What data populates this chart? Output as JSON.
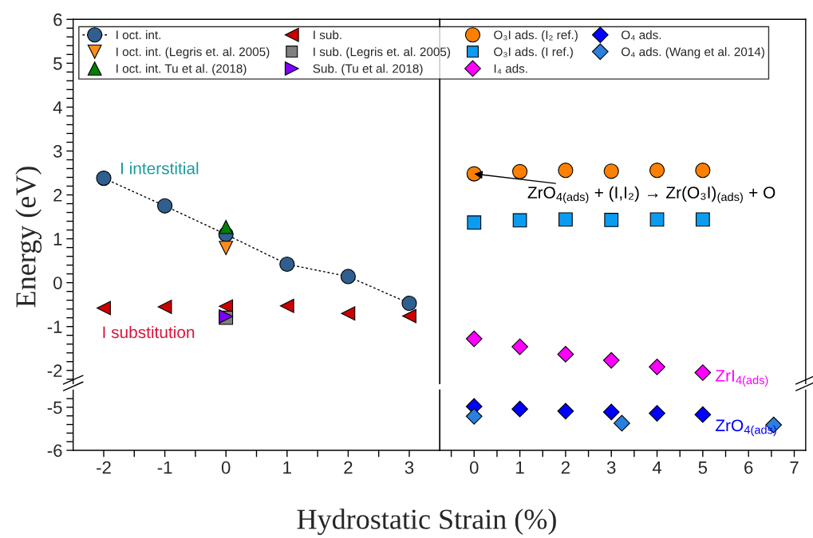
{
  "chart_data": [
    {
      "type": "scatter",
      "ylabel": "Energy (eV)",
      "xlim": [
        -2.5,
        3.5
      ],
      "ylim": [
        -2.3,
        6
      ],
      "tick_labels": "y",
      "legend": "top",
      "yticks": [
        -2,
        -1,
        0,
        1,
        2,
        3,
        4,
        5,
        6,
        {
          "value": -2.2,
          "label": null
        },
        {
          "value": -1.8,
          "label": null
        },
        {
          "value": -1.6,
          "label": null
        },
        {
          "value": -1.4,
          "label": null
        },
        {
          "value": -1.2,
          "label": null
        },
        {
          "value": -0.8,
          "label": null
        },
        {
          "value": -0.6,
          "label": null
        },
        {
          "value": -0.4,
          "label": null
        },
        {
          "value": -0.2,
          "label": null
        },
        {
          "value": 0.2,
          "label": null
        },
        {
          "value": 0.4,
          "label": null
        },
        {
          "value": 0.6,
          "label": null
        },
        {
          "value": 0.8,
          "label": null
        },
        {
          "value": 1.2,
          "label": null
        },
        {
          "value": 1.4,
          "label": null
        },
        {
          "value": 1.6,
          "label": null
        },
        {
          "value": 1.8,
          "label": null
        },
        {
          "value": 2.2,
          "label": null
        },
        {
          "value": 2.4,
          "label": null
        },
        {
          "value": 2.6,
          "label": null
        },
        {
          "value": 2.8,
          "label": null
        },
        {
          "value": 3.2,
          "label": null
        },
        {
          "value": 3.4,
          "label": null
        },
        {
          "value": 3.6,
          "label": null
        },
        {
          "value": 3.8,
          "label": null
        },
        {
          "value": 4.2,
          "label": null
        },
        {
          "value": 4.4,
          "label": null
        },
        {
          "value": 4.6,
          "label": null
        },
        {
          "value": 4.8,
          "label": null
        },
        {
          "value": 5.2,
          "label": null
        },
        {
          "value": 5.4,
          "label": null
        },
        {
          "value": 5.6,
          "label": null
        },
        {
          "value": 5.8,
          "label": null
        }
      ],
      "series": [
        {
          "name": "I oct. int.",
          "type": "line",
          "line_style": "dotted",
          "marker": "circle",
          "color": "#2f5f8f",
          "x": [
            -2,
            -1,
            0,
            1,
            2,
            3
          ],
          "values": [
            2.38,
            1.75,
            1.1,
            0.42,
            0.14,
            -0.47
          ]
        },
        {
          "name": "I oct. int. (Legris et. al. 2005)",
          "marker": "triangle-down",
          "color": "#ff8c1a",
          "x": [
            0
          ],
          "values": [
            0.79
          ]
        },
        {
          "name": "I oct. int. Tu et al. (2018)",
          "marker": "triangle",
          "color": "#008000",
          "x": [
            0
          ],
          "values": [
            1.27
          ]
        },
        {
          "name": "I sub.",
          "marker": "triangle-left",
          "color": "#cc0000",
          "x": [
            -2,
            -1,
            0,
            1,
            2,
            3
          ],
          "values": [
            -0.58,
            -0.55,
            -0.54,
            -0.53,
            -0.7,
            -0.76
          ]
        },
        {
          "name": "I sub. (Legris et. al. 2005)",
          "marker": "square",
          "color": "#808080",
          "x": [
            0
          ],
          "values": [
            -0.8
          ]
        },
        {
          "name": "Sub. (Tu et al. 2018)",
          "marker": "triangle-right",
          "color": "#7f00ff",
          "x": [
            0
          ],
          "values": [
            -0.77
          ]
        }
      ],
      "annotations": [
        "I interstitial",
        "I substitution"
      ]
    },
    {
      "type": "scatter",
      "xlabel": "Hydrostatic Strain (%)",
      "xlim": [
        -2.5,
        3.5
      ],
      "ylim": [
        -6,
        -4.6
      ],
      "xticks": [
        -2,
        -1,
        0,
        1,
        2,
        3,
        {
          "value": -1.5,
          "label": null
        },
        {
          "value": -0.5,
          "label": null
        },
        {
          "value": 0.5,
          "label": null
        },
        {
          "value": 1.5,
          "label": null
        },
        {
          "value": 2.5,
          "label": null
        }
      ],
      "yticks": [
        -6,
        -5,
        {
          "value": -5.8,
          "label": null
        },
        {
          "value": -5.6,
          "label": null
        },
        {
          "value": -5.4,
          "label": null
        },
        {
          "value": -5.2,
          "label": null
        },
        {
          "value": -4.8,
          "label": null
        }
      ]
    },
    {
      "type": "scatter",
      "xlim": [
        -0.75,
        7.25
      ],
      "ylim": [
        -2.3,
        6
      ],
      "tick_labels": false,
      "legend": "top",
      "series": [
        {
          "name": "O₃I ads. (I₂ ref.)",
          "marker": "circle",
          "color": "#ff8000",
          "x": [
            0,
            1,
            2,
            3,
            4,
            5
          ],
          "values": [
            2.48,
            2.53,
            2.56,
            2.54,
            2.56,
            2.56
          ]
        },
        {
          "name": "O₃I ads. (I ref.)",
          "marker": "square",
          "color": "#0a9cf0",
          "x": [
            0,
            1,
            2,
            3,
            4,
            5
          ],
          "values": [
            1.37,
            1.42,
            1.44,
            1.43,
            1.44,
            1.44
          ]
        },
        {
          "name": "I₄ ads.",
          "marker": "diamond",
          "color": "#ff00ff",
          "x": [
            0,
            1,
            2,
            3,
            4,
            5
          ],
          "values": [
            -1.28,
            -1.46,
            -1.63,
            -1.77,
            -1.92,
            -2.05
          ]
        }
      ],
      "annotations": [
        {
          "text": "ZrO$_{4(ads)}$ + (I,I₂) → Zr(O₃I)$_{(ads)}$ + O",
          "x": 0,
          "y": 2.48
        },
        "ZrI$_{4(ads)}$"
      ]
    },
    {
      "type": "scatter",
      "xlim": [
        -0.75,
        7.25
      ],
      "ylim": [
        -6,
        -4.6
      ],
      "tick_labels": "x",
      "legend": "top",
      "xticks": [
        0,
        1,
        2,
        3,
        4,
        5,
        6,
        7,
        {
          "value": -0.5,
          "label": null
        },
        {
          "value": 0.5,
          "label": null
        },
        {
          "value": 1.5,
          "label": null
        },
        {
          "value": 2.5,
          "label": null
        },
        {
          "value": 3.5,
          "label": null
        },
        {
          "value": 4.5,
          "label": null
        },
        {
          "value": 5.5,
          "label": null
        },
        {
          "value": 6.5,
          "label": null
        }
      ],
      "series": [
        {
          "name": "O₄ ads.",
          "marker": "diamond",
          "color": "#0000ff",
          "x": [
            0,
            1,
            2,
            3,
            4,
            5
          ],
          "values": [
            -4.98,
            -5.04,
            -5.09,
            -5.11,
            -5.14,
            -5.17
          ]
        },
        {
          "name": "O₄ ads. (Wang et al. 2014)",
          "marker": "diamond",
          "color": "#2a7fdf",
          "x": [
            0,
            3.23,
            6.55
          ],
          "values": [
            -5.21,
            -5.37,
            -5.41
          ]
        }
      ],
      "annotations": [
        "ZrO$_{4(ads)}$"
      ]
    }
  ]
}
